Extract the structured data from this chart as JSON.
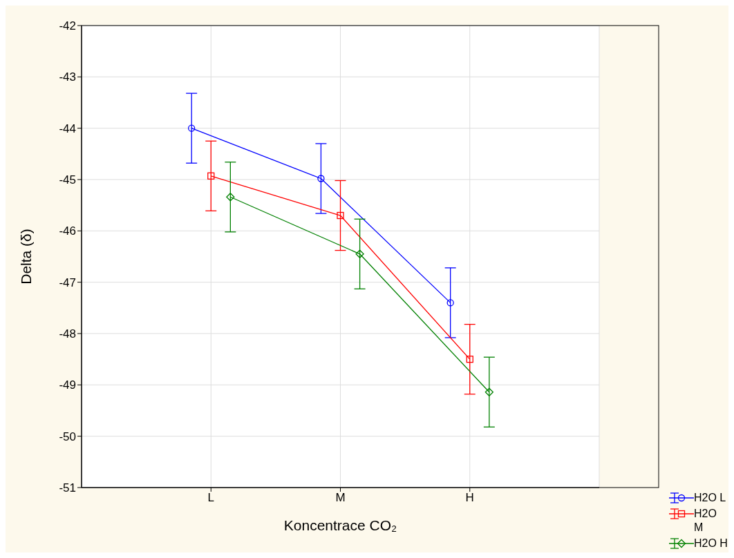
{
  "chart_data": {
    "type": "line",
    "xlabel": "Koncentrace CO₂",
    "ylabel": "Delta (δ)",
    "categories": [
      "L",
      "M",
      "H"
    ],
    "ylim": [
      -51,
      -42
    ],
    "yticks": [
      -51,
      -50,
      -49,
      -48,
      -47,
      -46,
      -45,
      -44,
      -43,
      -42
    ],
    "grid": true,
    "legend": "bottom right",
    "series": [
      {
        "name": "H2O L",
        "color": "#0000ff",
        "marker": "circle",
        "values": [
          -44.0,
          -44.98,
          -47.4
        ],
        "errors": [
          0.68,
          0.68,
          0.68
        ]
      },
      {
        "name": "H2O M",
        "color": "#ff0000",
        "marker": "square",
        "values": [
          -44.93,
          -45.7,
          -48.5
        ],
        "errors": [
          0.68,
          0.68,
          0.68
        ]
      },
      {
        "name": "H2O H",
        "color": "#008000",
        "marker": "diamond",
        "values": [
          -45.34,
          -46.45,
          -49.14
        ],
        "errors": [
          0.68,
          0.68,
          0.68
        ]
      }
    ]
  }
}
